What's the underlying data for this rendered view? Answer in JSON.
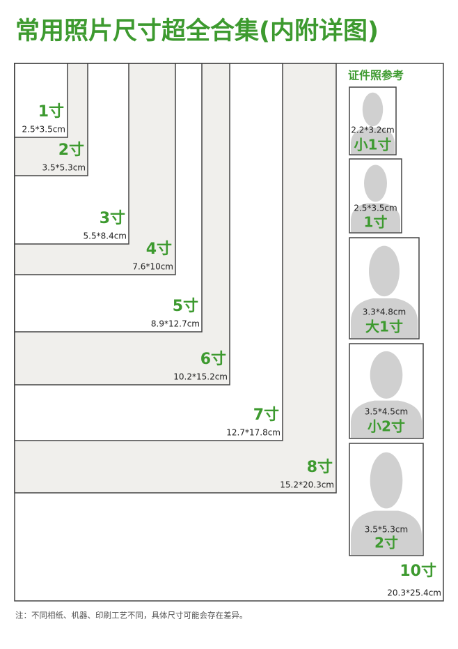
{
  "title": "常用照片尺寸超全合集(内附详图)",
  "frames": [
    {
      "label": "1寸",
      "size": "2.5*3.5cm"
    },
    {
      "label": "2寸",
      "size": "3.5*5.3cm"
    },
    {
      "label": "3寸",
      "size": "5.5*8.4cm"
    },
    {
      "label": "4寸",
      "size": "7.6*10cm"
    },
    {
      "label": "5寸",
      "size": "8.9*12.7cm"
    },
    {
      "label": "6寸",
      "size": "10.2*15.2cm"
    },
    {
      "label": "7寸",
      "size": "12.7*17.8cm"
    },
    {
      "label": "8寸",
      "size": "15.2*20.3cm"
    },
    {
      "label": "10寸",
      "size": "20.3*25.4cm"
    }
  ],
  "reference": {
    "title": "证件照参考",
    "photos": [
      {
        "label": "小1寸",
        "size": "2.2*3.2cm"
      },
      {
        "label": "1寸",
        "size": "2.5*3.5cm"
      },
      {
        "label": "大1寸",
        "size": "3.3*4.8cm"
      },
      {
        "label": "小2寸",
        "size": "3.5*4.5cm"
      },
      {
        "label": "2寸",
        "size": "3.5*5.3cm"
      }
    ]
  },
  "note": "注：不同相纸、机器、印刷工艺不同，具体尺寸可能会存在差异。"
}
